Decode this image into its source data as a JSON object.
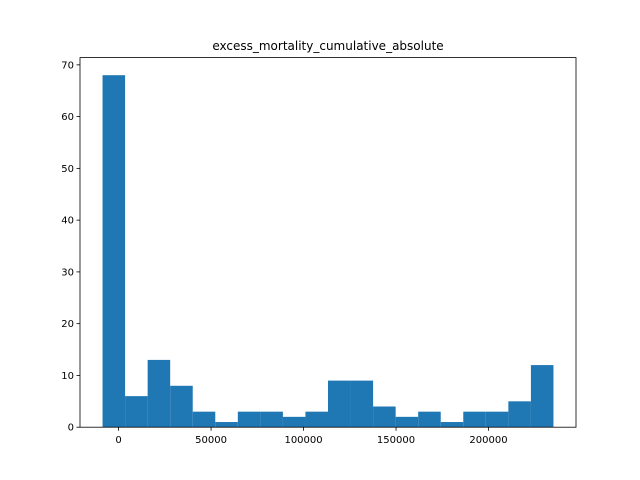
{
  "chart_data": {
    "type": "histogram",
    "title": "excess_mortality_cumulative_absolute",
    "bins": [
      -8670,
      3519,
      15708,
      27897,
      40086,
      52275,
      64464,
      76653,
      88842,
      101031,
      113220,
      125409,
      137598,
      149787,
      161976,
      174165,
      186354,
      198543,
      210732,
      222921,
      235110
    ],
    "counts": [
      68,
      6,
      13,
      8,
      3,
      1,
      3,
      3,
      2,
      3,
      9,
      9,
      4,
      2,
      3,
      1,
      3,
      3,
      5,
      12
    ],
    "color": "#1f77b4",
    "xlim": [
      -20860,
      247300
    ],
    "xticks": [
      0,
      50000,
      100000,
      150000,
      200000
    ],
    "ylim": [
      0,
      71.4
    ],
    "yticks": [
      0,
      10,
      20,
      30,
      40,
      50,
      60,
      70
    ]
  }
}
